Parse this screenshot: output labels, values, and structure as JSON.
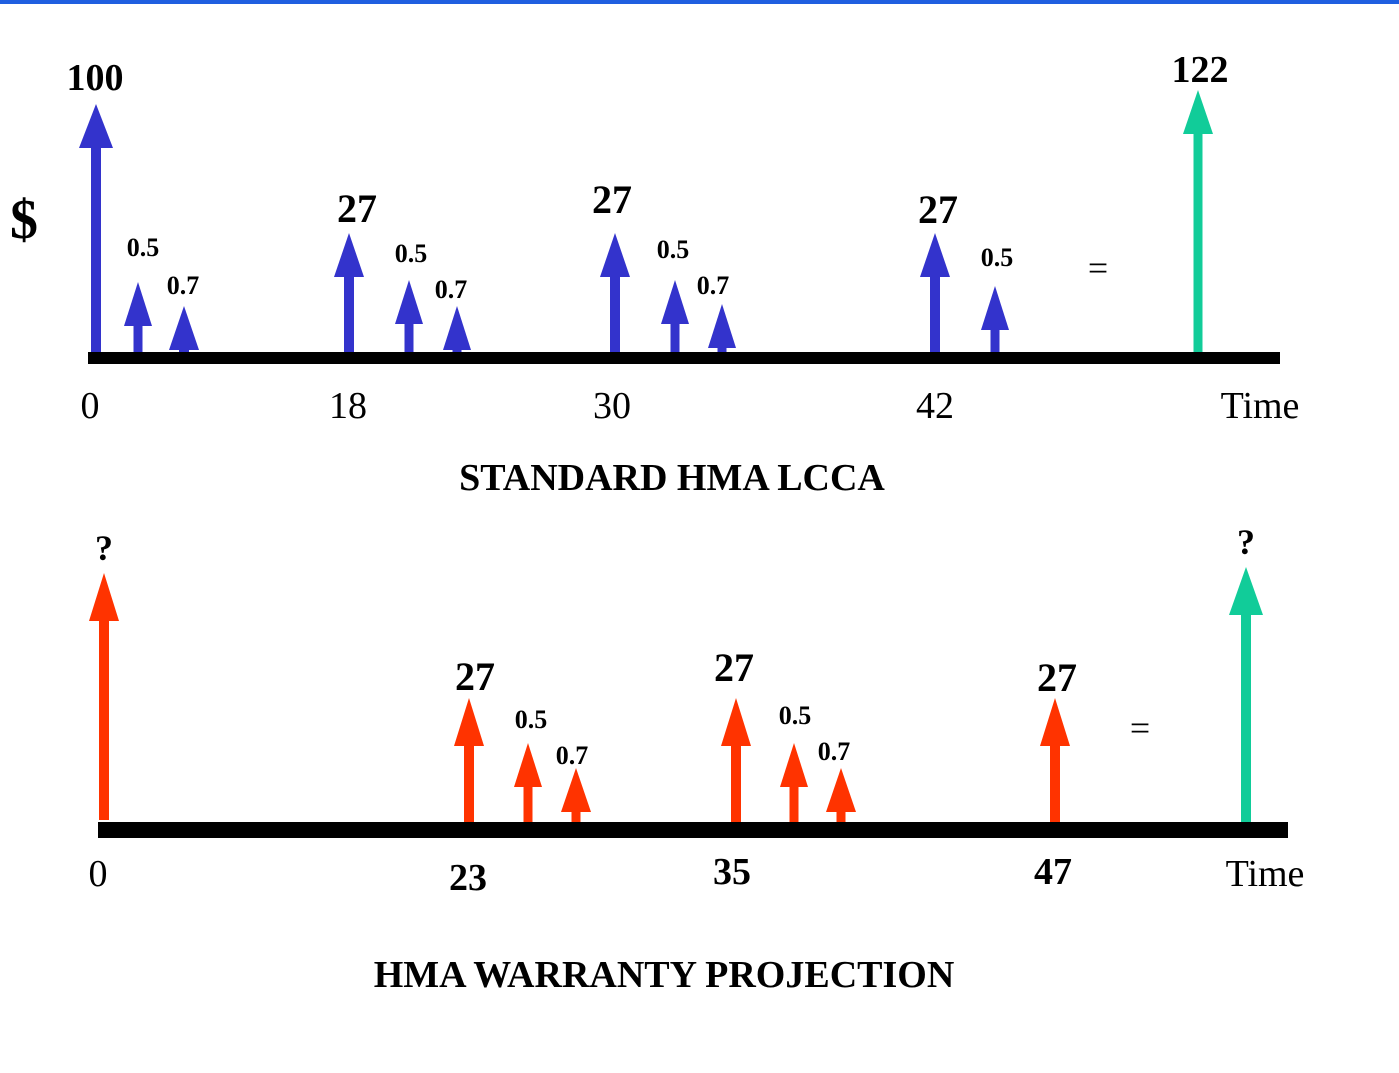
{
  "colors": {
    "frame_rule": "#1f5fe0",
    "blue_arrow": "#3333cc",
    "red_arrow": "#ff3300",
    "green_arrow": "#11cc99",
    "timeline": "#000000"
  },
  "diagrams": [
    {
      "id": "standard",
      "title": "STANDARD HMA LCCA",
      "y_symbol": "$",
      "axis_label": "Time",
      "ticks": [
        "0",
        "18",
        "30",
        "42"
      ],
      "equals": "=",
      "cash_flows": [
        {
          "label": "100",
          "color": "blue"
        },
        {
          "label": "0.5",
          "color": "blue"
        },
        {
          "label": "0.7",
          "color": "blue"
        },
        {
          "label": "27",
          "color": "blue"
        },
        {
          "label": "0.5",
          "color": "blue"
        },
        {
          "label": "0.7",
          "color": "blue"
        },
        {
          "label": "27",
          "color": "blue"
        },
        {
          "label": "0.5",
          "color": "blue"
        },
        {
          "label": "0.7",
          "color": "blue"
        },
        {
          "label": "27",
          "color": "blue"
        },
        {
          "label": "0.5",
          "color": "blue"
        }
      ],
      "result": {
        "label": "122",
        "color": "green"
      }
    },
    {
      "id": "warranty",
      "title": "HMA WARRANTY PROJECTION",
      "axis_label": "Time",
      "ticks": [
        "0",
        "23",
        "35",
        "47"
      ],
      "equals": "=",
      "cash_flows": [
        {
          "label": "?",
          "color": "red"
        },
        {
          "label": "27",
          "color": "red"
        },
        {
          "label": "0.5",
          "color": "red"
        },
        {
          "label": "0.7",
          "color": "red"
        },
        {
          "label": "27",
          "color": "red"
        },
        {
          "label": "0.5",
          "color": "red"
        },
        {
          "label": "0.7",
          "color": "red"
        },
        {
          "label": "27",
          "color": "red"
        }
      ],
      "result": {
        "label": "?",
        "color": "green"
      }
    }
  ]
}
